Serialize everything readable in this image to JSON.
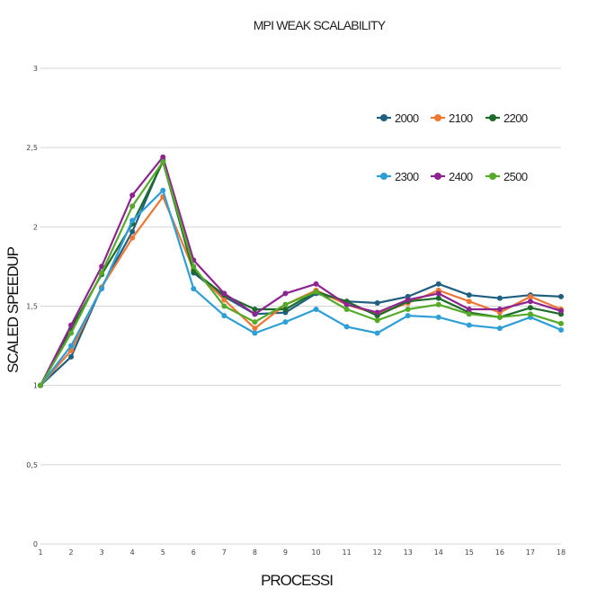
{
  "chart_data": {
    "type": "line",
    "title": "MPI  WEAK SCALABILITY",
    "xlabel": "PROCESSI",
    "ylabel": "SCALED SPEEDUP",
    "x": [
      1,
      2,
      3,
      4,
      5,
      6,
      7,
      8,
      9,
      10,
      11,
      12,
      13,
      14,
      15,
      16,
      17,
      18
    ],
    "x_tick_labels": [
      "1",
      "2",
      "3",
      "4",
      "5",
      "6",
      "7",
      "8",
      "9",
      "10",
      "11",
      "12",
      "13",
      "14",
      "15",
      "16",
      "17",
      "18"
    ],
    "ylim": [
      0,
      3
    ],
    "y_ticks": [
      0,
      0.5,
      1,
      1.5,
      2,
      2.5,
      3
    ],
    "y_tick_labels": [
      "0",
      "0,5",
      "1",
      "1,5",
      "2",
      "2,5",
      "3"
    ],
    "grid": true,
    "legend_position": "right",
    "series": [
      {
        "name": "2000",
        "color": "#1f5f7f",
        "values": [
          1.0,
          1.18,
          1.62,
          1.97,
          2.42,
          1.71,
          1.56,
          1.45,
          1.46,
          1.58,
          1.53,
          1.52,
          1.56,
          1.64,
          1.57,
          1.55,
          1.57,
          1.56
        ]
      },
      {
        "name": "2100",
        "color": "#ee7733",
        "values": [
          1.0,
          1.22,
          1.62,
          1.93,
          2.19,
          1.73,
          1.54,
          1.36,
          1.51,
          1.6,
          1.51,
          1.45,
          1.52,
          1.6,
          1.53,
          1.46,
          1.56,
          1.48
        ]
      },
      {
        "name": "2200",
        "color": "#1c6b2a",
        "values": [
          1.0,
          1.36,
          1.7,
          2.02,
          2.41,
          1.72,
          1.57,
          1.48,
          1.48,
          1.59,
          1.53,
          1.44,
          1.53,
          1.55,
          1.46,
          1.43,
          1.49,
          1.45
        ]
      },
      {
        "name": "2300",
        "color": "#2e9fd6",
        "values": [
          1.0,
          1.25,
          1.61,
          2.04,
          2.23,
          1.61,
          1.44,
          1.33,
          1.4,
          1.48,
          1.37,
          1.33,
          1.44,
          1.43,
          1.38,
          1.36,
          1.43,
          1.35
        ]
      },
      {
        "name": "2400",
        "color": "#8e2490",
        "values": [
          1.0,
          1.38,
          1.75,
          2.2,
          2.44,
          1.79,
          1.58,
          1.45,
          1.58,
          1.64,
          1.51,
          1.46,
          1.54,
          1.58,
          1.48,
          1.48,
          1.53,
          1.47
        ]
      },
      {
        "name": "2500",
        "color": "#55aa2a",
        "values": [
          1.0,
          1.33,
          1.71,
          2.13,
          2.41,
          1.75,
          1.5,
          1.4,
          1.51,
          1.59,
          1.48,
          1.41,
          1.48,
          1.51,
          1.45,
          1.43,
          1.45,
          1.39
        ]
      }
    ]
  }
}
